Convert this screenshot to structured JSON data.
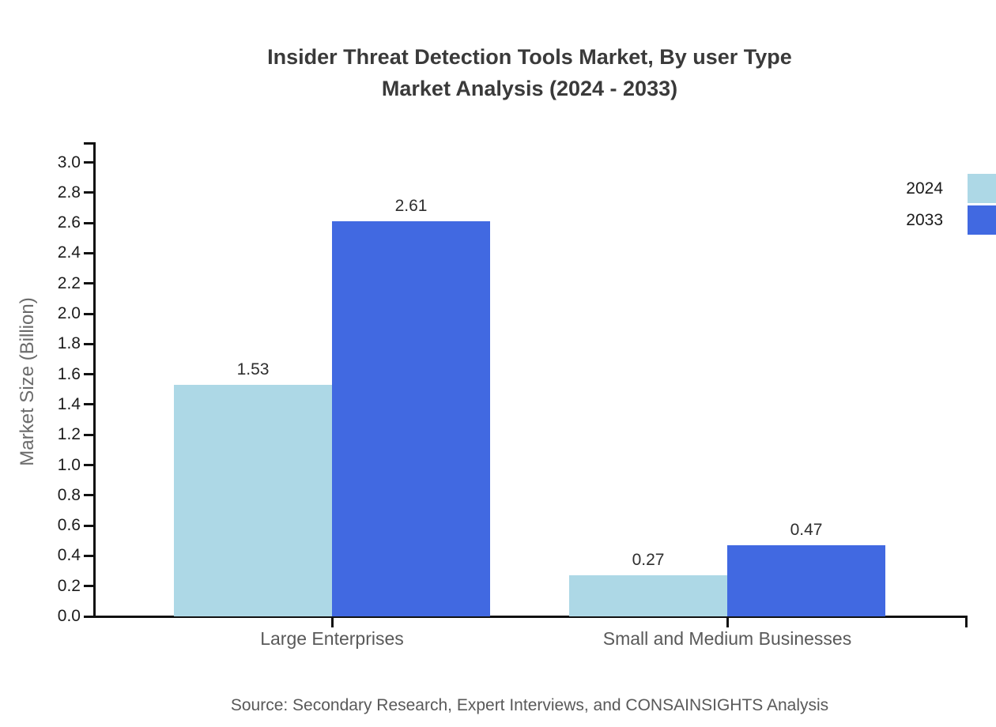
{
  "title": {
    "line1": "Insider Threat Detection Tools Market, By user Type",
    "line2": "Market Analysis (2024 - 2033)"
  },
  "legend": [
    {
      "label": "2024",
      "color": "#ADD8E6"
    },
    {
      "label": "2033",
      "color": "#4169E1"
    }
  ],
  "source": "Source: Secondary Research, Expert Interviews, and CONSAINSIGHTS Analysis",
  "chart_data": {
    "type": "bar",
    "categories": [
      "Large Enterprises",
      "Small and Medium Businesses"
    ],
    "series": [
      {
        "name": "2024",
        "color": "#ADD8E6",
        "values": [
          1.53,
          0.27
        ]
      },
      {
        "name": "2033",
        "color": "#4169E1",
        "values": [
          2.61,
          0.47
        ]
      }
    ],
    "value_labels": [
      [
        "1.53",
        "0.27"
      ],
      [
        "2.61",
        "0.47"
      ]
    ],
    "title": "Insider Threat Detection Tools Market, By user Type Market Analysis (2024 - 2033)",
    "xlabel": "",
    "ylabel": "Market Size (Billion)",
    "ylim": [
      0.0,
      3.1
    ],
    "yticks": [
      "0.0",
      "0.2",
      "0.4",
      "0.6",
      "0.8",
      "1.0",
      "1.2",
      "1.4",
      "1.6",
      "1.8",
      "2.0",
      "2.2",
      "2.4",
      "2.6",
      "2.8",
      "3.0"
    ],
    "ytick_values": [
      0.0,
      0.2,
      0.4,
      0.6,
      0.8,
      1.0,
      1.2,
      1.4,
      1.6,
      1.8,
      2.0,
      2.2,
      2.4,
      2.6,
      2.8,
      3.0
    ],
    "grid": false,
    "legend_position": "top-right"
  }
}
